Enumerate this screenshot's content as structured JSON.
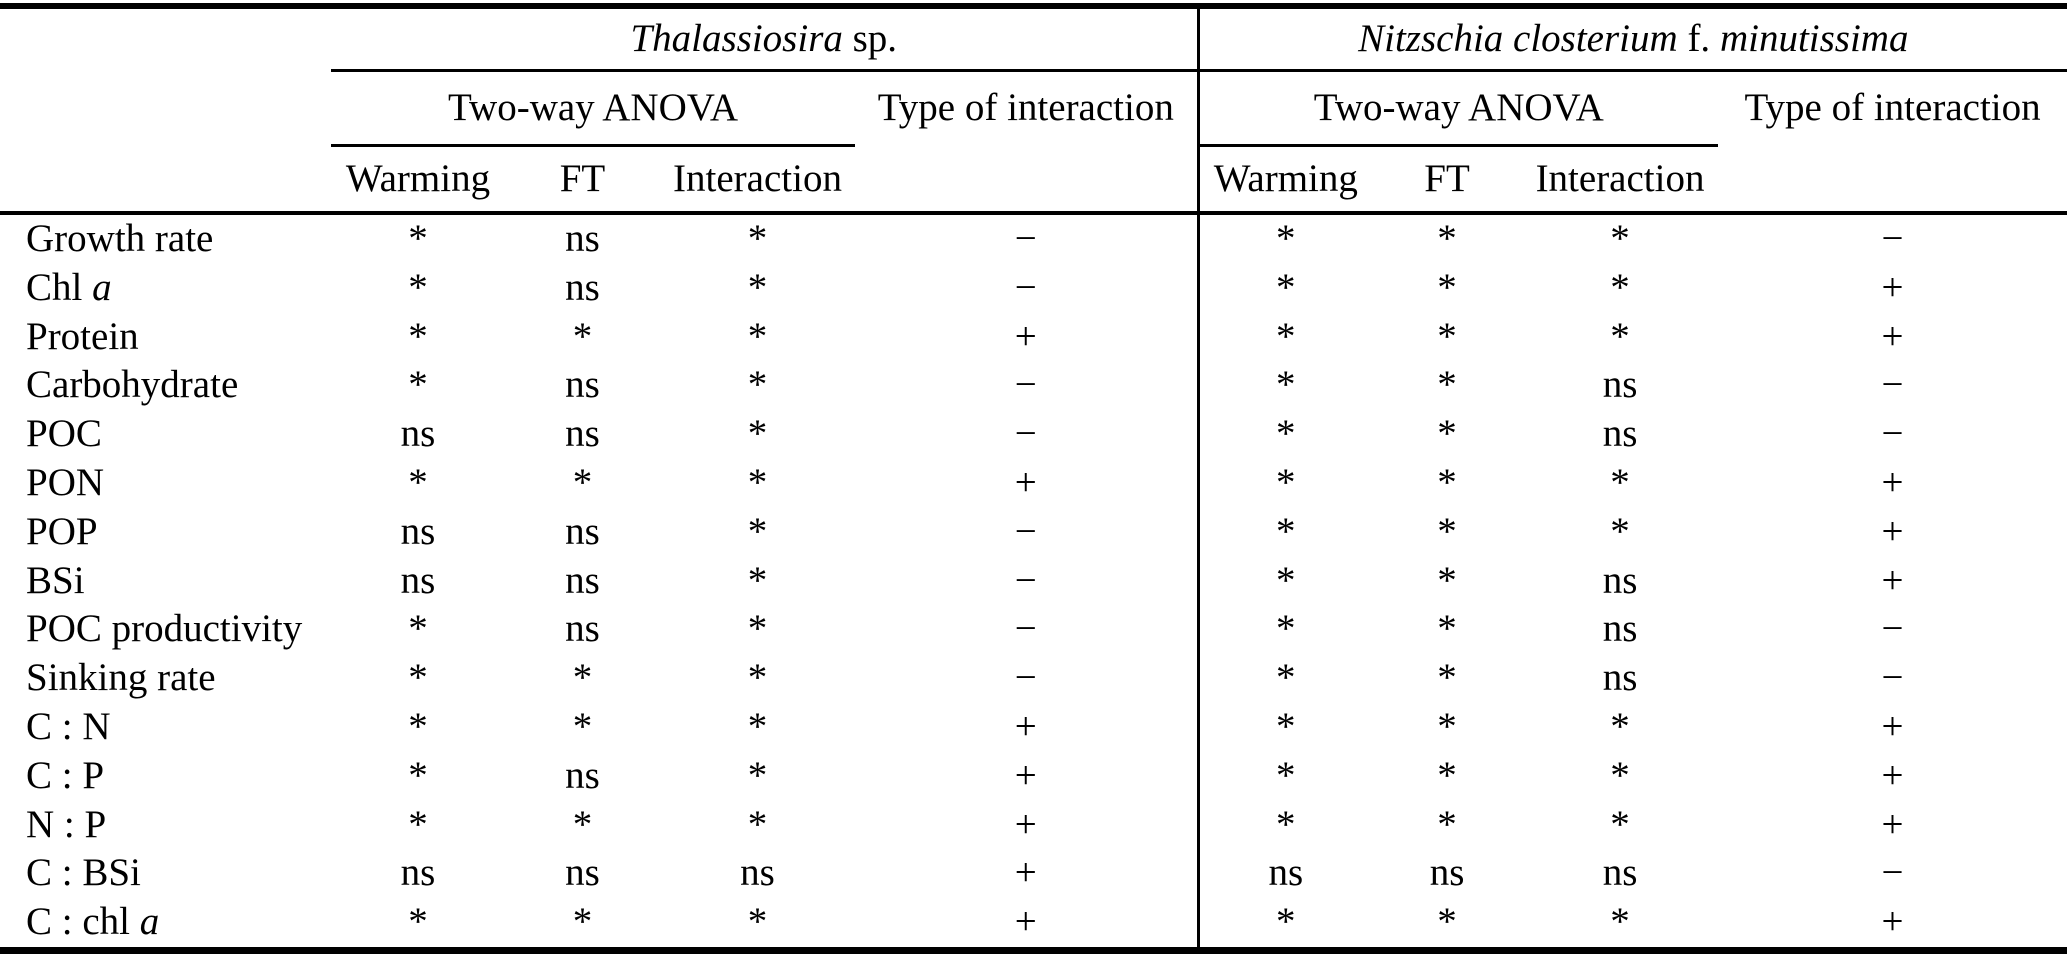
{
  "page": {
    "background_color": "#ffffff",
    "text_color": "#000000",
    "rule_color": "#000000"
  },
  "table": {
    "species_groups": [
      {
        "name_plain": "Thalassiosira sp.",
        "name_parts": [
          {
            "t": "Thalassiosira",
            "i": true
          },
          {
            "t": " sp.",
            "i": false
          }
        ]
      },
      {
        "name_plain": "Nitzschia closterium f. minutissima",
        "name_parts": [
          {
            "t": "Nitzschia closterium",
            "i": true
          },
          {
            "t": " f. ",
            "i": false
          },
          {
            "t": "minutissima",
            "i": true
          }
        ]
      }
    ],
    "anova_header": "Two-way ANOVA",
    "type_header": "Type of interaction",
    "factor_headers": [
      "Warming",
      "FT",
      "Interaction"
    ],
    "rows": [
      {
        "label_plain": "Growth rate",
        "label_parts": [
          {
            "t": "Growth rate",
            "i": false
          }
        ],
        "thalassiosira": {
          "warming": "*",
          "ft": "ns",
          "interaction": "*",
          "type": "−"
        },
        "nitzschia": {
          "warming": "*",
          "ft": "*",
          "interaction": "*",
          "type": "−"
        }
      },
      {
        "label_plain": "Chl a",
        "label_parts": [
          {
            "t": "Chl ",
            "i": false
          },
          {
            "t": "a",
            "i": true
          }
        ],
        "thalassiosira": {
          "warming": "*",
          "ft": "ns",
          "interaction": "*",
          "type": "−"
        },
        "nitzschia": {
          "warming": "*",
          "ft": "*",
          "interaction": "*",
          "type": "+"
        }
      },
      {
        "label_plain": "Protein",
        "label_parts": [
          {
            "t": "Protein",
            "i": false
          }
        ],
        "thalassiosira": {
          "warming": "*",
          "ft": "*",
          "interaction": "*",
          "type": "+"
        },
        "nitzschia": {
          "warming": "*",
          "ft": "*",
          "interaction": "*",
          "type": "+"
        }
      },
      {
        "label_plain": "Carbohydrate",
        "label_parts": [
          {
            "t": "Carbohydrate",
            "i": false
          }
        ],
        "thalassiosira": {
          "warming": "*",
          "ft": "ns",
          "interaction": "*",
          "type": "−"
        },
        "nitzschia": {
          "warming": "*",
          "ft": "*",
          "interaction": "ns",
          "type": "−"
        }
      },
      {
        "label_plain": "POC",
        "label_parts": [
          {
            "t": "POC",
            "i": false
          }
        ],
        "thalassiosira": {
          "warming": "ns",
          "ft": "ns",
          "interaction": "*",
          "type": "−"
        },
        "nitzschia": {
          "warming": "*",
          "ft": "*",
          "interaction": "ns",
          "type": "−"
        }
      },
      {
        "label_plain": "PON",
        "label_parts": [
          {
            "t": "PON",
            "i": false
          }
        ],
        "thalassiosira": {
          "warming": "*",
          "ft": "*",
          "interaction": "*",
          "type": "+"
        },
        "nitzschia": {
          "warming": "*",
          "ft": "*",
          "interaction": "*",
          "type": "+"
        }
      },
      {
        "label_plain": "POP",
        "label_parts": [
          {
            "t": "POP",
            "i": false
          }
        ],
        "thalassiosira": {
          "warming": "ns",
          "ft": "ns",
          "interaction": "*",
          "type": "−"
        },
        "nitzschia": {
          "warming": "*",
          "ft": "*",
          "interaction": "*",
          "type": "+"
        }
      },
      {
        "label_plain": "BSi",
        "label_parts": [
          {
            "t": "BSi",
            "i": false
          }
        ],
        "thalassiosira": {
          "warming": "ns",
          "ft": "ns",
          "interaction": "*",
          "type": "−"
        },
        "nitzschia": {
          "warming": "*",
          "ft": "*",
          "interaction": "ns",
          "type": "+"
        }
      },
      {
        "label_plain": "POC productivity",
        "label_parts": [
          {
            "t": "POC productivity",
            "i": false
          }
        ],
        "thalassiosira": {
          "warming": "*",
          "ft": "ns",
          "interaction": "*",
          "type": "−"
        },
        "nitzschia": {
          "warming": "*",
          "ft": "*",
          "interaction": "ns",
          "type": "−"
        }
      },
      {
        "label_plain": "Sinking rate",
        "label_parts": [
          {
            "t": "Sinking rate",
            "i": false
          }
        ],
        "thalassiosira": {
          "warming": "*",
          "ft": "*",
          "interaction": "*",
          "type": "−"
        },
        "nitzschia": {
          "warming": "*",
          "ft": "*",
          "interaction": "ns",
          "type": "−"
        }
      },
      {
        "label_plain": "C : N",
        "label_parts": [
          {
            "t": "C : N",
            "i": false
          }
        ],
        "thalassiosira": {
          "warming": "*",
          "ft": "*",
          "interaction": "*",
          "type": "+"
        },
        "nitzschia": {
          "warming": "*",
          "ft": "*",
          "interaction": "*",
          "type": "+"
        }
      },
      {
        "label_plain": "C : P",
        "label_parts": [
          {
            "t": "C : P",
            "i": false
          }
        ],
        "thalassiosira": {
          "warming": "*",
          "ft": "ns",
          "interaction": "*",
          "type": "+"
        },
        "nitzschia": {
          "warming": "*",
          "ft": "*",
          "interaction": "*",
          "type": "+"
        }
      },
      {
        "label_plain": "N : P",
        "label_parts": [
          {
            "t": "N : P",
            "i": false
          }
        ],
        "thalassiosira": {
          "warming": "*",
          "ft": "*",
          "interaction": "*",
          "type": "+"
        },
        "nitzschia": {
          "warming": "*",
          "ft": "*",
          "interaction": "*",
          "type": "+"
        }
      },
      {
        "label_plain": "C : BSi",
        "label_parts": [
          {
            "t": "C : BSi",
            "i": false
          }
        ],
        "thalassiosira": {
          "warming": "ns",
          "ft": "ns",
          "interaction": "ns",
          "type": "+"
        },
        "nitzschia": {
          "warming": "ns",
          "ft": "ns",
          "interaction": "ns",
          "type": "−"
        }
      },
      {
        "label_plain": "C : chl a",
        "label_parts": [
          {
            "t": "C : chl ",
            "i": false
          },
          {
            "t": "a",
            "i": true
          }
        ],
        "thalassiosira": {
          "warming": "*",
          "ft": "*",
          "interaction": "*",
          "type": "+"
        },
        "nitzschia": {
          "warming": "*",
          "ft": "*",
          "interaction": "*",
          "type": "+"
        }
      }
    ]
  }
}
